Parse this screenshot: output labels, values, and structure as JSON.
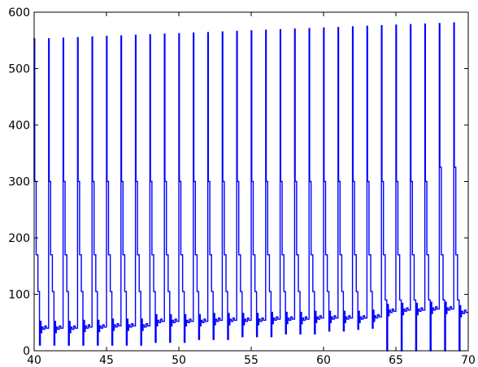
{
  "chart_data": {
    "type": "line",
    "title": "",
    "xlabel": "",
    "ylabel": "",
    "xlim": [
      40,
      70
    ],
    "ylim": [
      0,
      600
    ],
    "grid": false,
    "legend": "none",
    "x_ticks": [
      40,
      45,
      50,
      55,
      60,
      65,
      70
    ],
    "y_ticks": [
      0,
      100,
      200,
      300,
      400,
      500,
      600
    ],
    "x_tick_labels": [
      "40",
      "45",
      "50",
      "55",
      "60",
      "65",
      "70"
    ],
    "y_tick_labels": [
      "0",
      "100",
      "200",
      "300",
      "400",
      "500",
      "600"
    ],
    "series_color": "#0000ff",
    "pulse_start_x": 40.0,
    "pulse_period": 1.0,
    "pulse_count": 30,
    "peaks": [
      553,
      553,
      554,
      555,
      556,
      557,
      558,
      559,
      560,
      561,
      562,
      563,
      564,
      565,
      566,
      567,
      568,
      569,
      570,
      571,
      572,
      573,
      574,
      575,
      576,
      577,
      578,
      579,
      580,
      581
    ],
    "first_steps": [
      300,
      300,
      300,
      300,
      300,
      300,
      300,
      300,
      300,
      300,
      300,
      300,
      300,
      300,
      300,
      300,
      300,
      300,
      300,
      300,
      300,
      300,
      300,
      300,
      300,
      300,
      300,
      300,
      325,
      325
    ],
    "second_steps": [
      170,
      170,
      170,
      170,
      170,
      170,
      170,
      170,
      170,
      170,
      170,
      170,
      170,
      170,
      170,
      170,
      170,
      170,
      170,
      170,
      170,
      170,
      170,
      170,
      170,
      170,
      170,
      170,
      170,
      170
    ],
    "third_steps": [
      105,
      105,
      105,
      105,
      105,
      105,
      105,
      105,
      105,
      105,
      105,
      105,
      105,
      105,
      105,
      105,
      105,
      105,
      105,
      105,
      105,
      105,
      105,
      105,
      90,
      90,
      90,
      90,
      90,
      90
    ],
    "troughs": [
      10,
      10,
      10,
      10,
      10,
      10,
      10,
      10,
      15,
      15,
      15,
      20,
      20,
      20,
      25,
      25,
      25,
      30,
      30,
      30,
      35,
      35,
      38,
      40,
      0,
      0,
      0,
      0,
      0,
      0
    ],
    "baselines": [
      40,
      40,
      40,
      42,
      42,
      44,
      44,
      44,
      52,
      52,
      52,
      52,
      54,
      54,
      54,
      54,
      56,
      56,
      56,
      58,
      58,
      58,
      58,
      60,
      70,
      72,
      72,
      74,
      74,
      68
    ]
  }
}
